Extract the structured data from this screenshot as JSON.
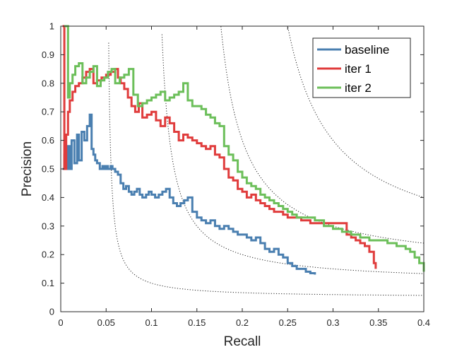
{
  "chart_data": {
    "type": "line",
    "title": "",
    "xlabel": "Recall",
    "ylabel": "Precision",
    "xlim": [
      0,
      0.4
    ],
    "ylim": [
      0,
      1
    ],
    "grid": false,
    "legend_position": "top-right",
    "xticks": [
      0,
      0.05,
      0.1,
      0.15,
      0.2,
      0.25,
      0.3,
      0.35,
      0.4
    ],
    "xtick_labels": [
      "0",
      "0.05",
      "0.1",
      "0.15",
      "0.2",
      "0.25",
      "0.3",
      "0.35",
      "0.4"
    ],
    "yticks": [
      0,
      0.1,
      0.2,
      0.3,
      0.4,
      0.5,
      0.6,
      0.7,
      0.8,
      0.9,
      1
    ],
    "ytick_labels": [
      "0",
      "0.1",
      "0.2",
      "0.3",
      "0.4",
      "0.5",
      "0.6",
      "0.7",
      "0.8",
      "0.9",
      "1"
    ],
    "iso_f_contours": [
      0.1,
      0.2,
      0.3,
      0.4
    ],
    "series": [
      {
        "name": "baseline",
        "color": "#4a7fb0",
        "x": [
          0.002,
          0.004,
          0.006,
          0.008,
          0.01,
          0.012,
          0.015,
          0.018,
          0.02,
          0.023,
          0.026,
          0.029,
          0.032,
          0.034,
          0.036,
          0.038,
          0.04,
          0.043,
          0.046,
          0.048,
          0.05,
          0.052,
          0.055,
          0.057,
          0.06,
          0.063,
          0.066,
          0.069,
          0.072,
          0.075,
          0.078,
          0.081,
          0.084,
          0.087,
          0.09,
          0.094,
          0.097,
          0.1,
          0.104,
          0.108,
          0.112,
          0.116,
          0.12,
          0.124,
          0.128,
          0.132,
          0.136,
          0.14,
          0.145,
          0.15,
          0.155,
          0.16,
          0.165,
          0.17,
          0.175,
          0.18,
          0.185,
          0.19,
          0.195,
          0.2,
          0.205,
          0.21,
          0.215,
          0.22,
          0.225,
          0.23,
          0.235,
          0.24,
          0.245,
          0.25,
          0.255,
          0.26,
          0.265,
          0.27,
          0.275,
          0.28
        ],
        "y": [
          0.5,
          0.55,
          0.5,
          0.58,
          0.5,
          0.6,
          0.52,
          0.62,
          0.53,
          0.63,
          0.6,
          0.65,
          0.69,
          0.57,
          0.55,
          0.53,
          0.52,
          0.5,
          0.51,
          0.5,
          0.51,
          0.5,
          0.51,
          0.5,
          0.49,
          0.48,
          0.45,
          0.43,
          0.44,
          0.42,
          0.41,
          0.42,
          0.43,
          0.41,
          0.4,
          0.41,
          0.42,
          0.41,
          0.4,
          0.41,
          0.42,
          0.43,
          0.4,
          0.38,
          0.37,
          0.38,
          0.39,
          0.4,
          0.35,
          0.33,
          0.32,
          0.31,
          0.32,
          0.3,
          0.29,
          0.3,
          0.29,
          0.28,
          0.27,
          0.27,
          0.26,
          0.25,
          0.26,
          0.24,
          0.22,
          0.21,
          0.22,
          0.2,
          0.19,
          0.17,
          0.16,
          0.15,
          0.15,
          0.14,
          0.135,
          0.13
        ]
      },
      {
        "name": "iter 1",
        "color": "#e03c3c",
        "x": [
          0.002,
          0.004,
          0.006,
          0.008,
          0.01,
          0.013,
          0.016,
          0.02,
          0.024,
          0.028,
          0.032,
          0.036,
          0.04,
          0.045,
          0.05,
          0.055,
          0.06,
          0.063,
          0.066,
          0.07,
          0.074,
          0.078,
          0.082,
          0.086,
          0.09,
          0.095,
          0.1,
          0.105,
          0.11,
          0.115,
          0.12,
          0.125,
          0.13,
          0.135,
          0.14,
          0.145,
          0.15,
          0.155,
          0.16,
          0.165,
          0.17,
          0.175,
          0.18,
          0.185,
          0.19,
          0.195,
          0.2,
          0.205,
          0.21,
          0.215,
          0.22,
          0.225,
          0.23,
          0.235,
          0.24,
          0.245,
          0.25,
          0.255,
          0.26,
          0.265,
          0.27,
          0.275,
          0.28,
          0.285,
          0.29,
          0.295,
          0.3,
          0.305,
          0.31,
          0.315,
          0.32,
          0.325,
          0.33,
          0.335,
          0.34,
          0.345,
          0.347
        ],
        "y": [
          1.0,
          0.5,
          0.62,
          0.7,
          0.74,
          0.77,
          0.79,
          0.8,
          0.82,
          0.84,
          0.85,
          0.8,
          0.81,
          0.82,
          0.83,
          0.84,
          0.85,
          0.82,
          0.8,
          0.78,
          0.75,
          0.72,
          0.7,
          0.73,
          0.68,
          0.69,
          0.7,
          0.67,
          0.65,
          0.68,
          0.66,
          0.63,
          0.6,
          0.62,
          0.61,
          0.6,
          0.59,
          0.58,
          0.57,
          0.58,
          0.55,
          0.54,
          0.5,
          0.47,
          0.46,
          0.43,
          0.42,
          0.4,
          0.41,
          0.39,
          0.38,
          0.37,
          0.36,
          0.35,
          0.35,
          0.34,
          0.33,
          0.33,
          0.33,
          0.32,
          0.32,
          0.31,
          0.31,
          0.31,
          0.31,
          0.31,
          0.31,
          0.31,
          0.31,
          0.27,
          0.26,
          0.25,
          0.24,
          0.23,
          0.21,
          0.17,
          0.15
        ]
      },
      {
        "name": "iter 2",
        "color": "#6cbf5a",
        "x": [
          0.004,
          0.006,
          0.008,
          0.01,
          0.013,
          0.016,
          0.02,
          0.024,
          0.028,
          0.032,
          0.036,
          0.04,
          0.044,
          0.048,
          0.052,
          0.056,
          0.06,
          0.065,
          0.07,
          0.075,
          0.08,
          0.085,
          0.09,
          0.095,
          0.1,
          0.105,
          0.11,
          0.115,
          0.12,
          0.125,
          0.13,
          0.135,
          0.14,
          0.145,
          0.15,
          0.155,
          0.16,
          0.165,
          0.17,
          0.175,
          0.18,
          0.185,
          0.19,
          0.195,
          0.2,
          0.205,
          0.21,
          0.215,
          0.22,
          0.225,
          0.23,
          0.235,
          0.24,
          0.245,
          0.25,
          0.255,
          0.26,
          0.27,
          0.28,
          0.29,
          0.3,
          0.31,
          0.32,
          0.33,
          0.34,
          0.35,
          0.36,
          0.37,
          0.38,
          0.385,
          0.39,
          0.395,
          0.4
        ],
        "y": [
          1.0,
          1.0,
          0.75,
          0.8,
          0.83,
          0.86,
          0.87,
          0.8,
          0.82,
          0.84,
          0.86,
          0.79,
          0.81,
          0.82,
          0.84,
          0.85,
          0.8,
          0.82,
          0.83,
          0.85,
          0.76,
          0.72,
          0.73,
          0.74,
          0.75,
          0.76,
          0.77,
          0.74,
          0.75,
          0.76,
          0.77,
          0.8,
          0.74,
          0.72,
          0.72,
          0.71,
          0.69,
          0.68,
          0.66,
          0.65,
          0.58,
          0.55,
          0.53,
          0.49,
          0.47,
          0.45,
          0.44,
          0.43,
          0.41,
          0.4,
          0.39,
          0.38,
          0.37,
          0.36,
          0.35,
          0.34,
          0.33,
          0.33,
          0.32,
          0.3,
          0.29,
          0.28,
          0.27,
          0.26,
          0.25,
          0.25,
          0.24,
          0.23,
          0.22,
          0.21,
          0.19,
          0.17,
          0.14
        ]
      }
    ]
  }
}
